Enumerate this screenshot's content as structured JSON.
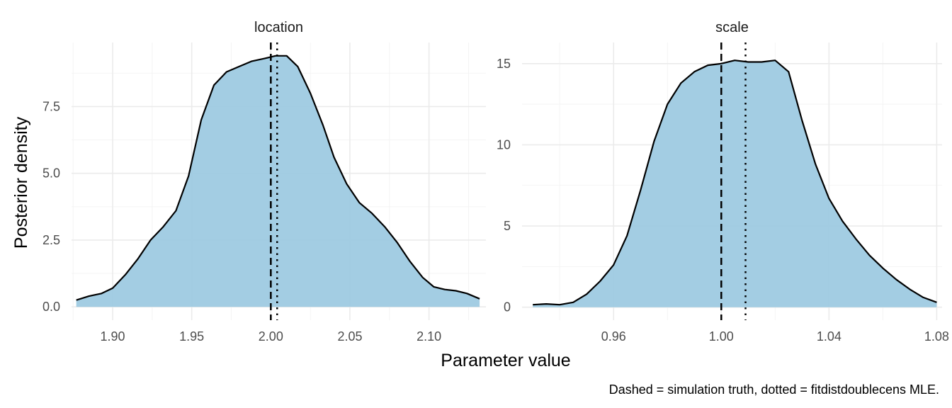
{
  "caption": "Dashed = simulation truth, dotted = fitdistdoublecens MLE.",
  "xlabel": "Parameter value",
  "ylabel": "Posterior density",
  "colors": {
    "fill": "#9ecae1",
    "line": "#000000",
    "grid": "#ebebeb"
  },
  "chart_data": [
    {
      "type": "area",
      "title": "location",
      "xlim": [
        1.874,
        2.136
      ],
      "ylim": [
        -0.5,
        9.9
      ],
      "x_ticks": [
        1.9,
        1.95,
        2.0,
        2.05,
        2.1
      ],
      "x_tick_labels": [
        "1.90",
        "1.95",
        "2.00",
        "2.05",
        "2.10"
      ],
      "y_ticks": [
        0,
        2.5,
        5.0,
        7.5
      ],
      "y_tick_labels": [
        "0.0",
        "2.5",
        "5.0",
        "7.5"
      ],
      "grid": true,
      "truth": 2.0,
      "mle": 2.004,
      "x": [
        1.877,
        1.885,
        1.893,
        1.9,
        1.908,
        1.916,
        1.924,
        1.932,
        1.94,
        1.948,
        1.956,
        1.964,
        1.972,
        1.98,
        1.988,
        1.996,
        2.003,
        2.01,
        2.017,
        2.025,
        2.033,
        2.04,
        2.048,
        2.056,
        2.064,
        2.072,
        2.08,
        2.088,
        2.096,
        2.103,
        2.11,
        2.117,
        2.124,
        2.132
      ],
      "y": [
        0.25,
        0.4,
        0.5,
        0.7,
        1.2,
        1.8,
        2.5,
        3.0,
        3.6,
        4.9,
        7.0,
        8.3,
        8.8,
        9.0,
        9.2,
        9.3,
        9.4,
        9.4,
        9.0,
        8.0,
        6.8,
        5.6,
        4.6,
        3.9,
        3.5,
        3.0,
        2.4,
        1.7,
        1.1,
        0.75,
        0.65,
        0.6,
        0.5,
        0.3
      ]
    },
    {
      "type": "area",
      "title": "scale",
      "xlim": [
        0.926,
        1.082
      ],
      "ylim": [
        -0.8,
        16.3
      ],
      "x_ticks": [
        0.96,
        1.0,
        1.04,
        1.08
      ],
      "x_tick_labels": [
        "0.96",
        "1.00",
        "1.04",
        "1.08"
      ],
      "y_ticks": [
        0,
        5,
        10,
        15
      ],
      "y_tick_labels": [
        "0",
        "5",
        "10",
        "15"
      ],
      "grid": true,
      "truth": 1.0,
      "mle": 1.009,
      "x": [
        0.93,
        0.935,
        0.94,
        0.945,
        0.95,
        0.955,
        0.96,
        0.965,
        0.97,
        0.975,
        0.98,
        0.985,
        0.99,
        0.995,
        1.0,
        1.005,
        1.01,
        1.015,
        1.02,
        1.025,
        1.03,
        1.035,
        1.04,
        1.045,
        1.05,
        1.055,
        1.06,
        1.065,
        1.07,
        1.075,
        1.08
      ],
      "y": [
        0.15,
        0.2,
        0.15,
        0.3,
        0.8,
        1.6,
        2.6,
        4.4,
        7.2,
        10.2,
        12.5,
        13.8,
        14.5,
        14.9,
        15.0,
        15.2,
        15.1,
        15.1,
        15.2,
        14.5,
        11.5,
        8.8,
        6.7,
        5.3,
        4.2,
        3.2,
        2.4,
        1.7,
        1.1,
        0.6,
        0.3
      ]
    }
  ]
}
